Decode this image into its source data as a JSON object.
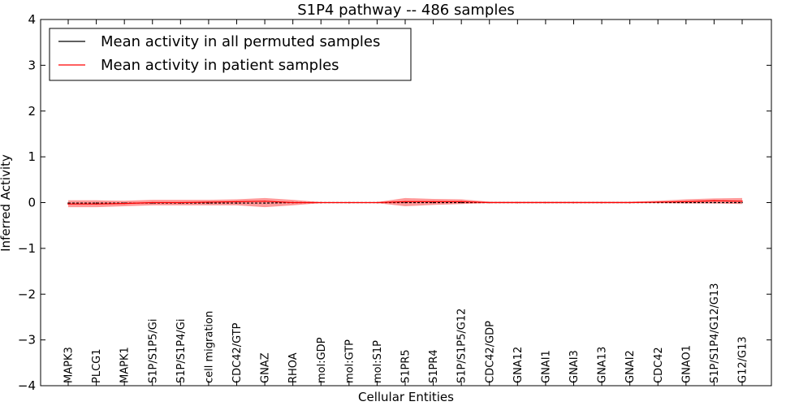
{
  "chart_data": {
    "type": "line",
    "title": "S1P4 pathway -- 486 samples",
    "xlabel": "Cellular Entities",
    "ylabel": "Inferred Activity",
    "ylim": [
      -4,
      4
    ],
    "yticks": [
      "−4",
      "−3",
      "−2",
      "−1",
      "0",
      "1",
      "2",
      "3",
      "4"
    ],
    "ytick_values": [
      -4,
      -3,
      -2,
      -1,
      0,
      1,
      2,
      3,
      4
    ],
    "categories": [
      "MAPK3",
      "PLCG1",
      "MAPK1",
      "S1P/S1P5/Gi",
      "S1P/S1P4/Gi",
      "cell migration",
      "CDC42/GTP",
      "GNAZ",
      "RHOA",
      "mol:GDP",
      "mol:GTP",
      "mol:S1P",
      "S1PR5",
      "S1PR4",
      "S1P/S1P5/G12",
      "CDC42/GDP",
      "GNA12",
      "GNAI1",
      "GNAI3",
      "GNA13",
      "GNAI2",
      "CDC42",
      "GNAO1",
      "S1P/S1P4/G12/G13",
      "G12/G13"
    ],
    "legend": {
      "position": "top-left",
      "entries": [
        {
          "label": "Mean activity in all permuted samples",
          "color": "#000000"
        },
        {
          "label": "Mean activity in patient samples",
          "color": "#ff0000"
        }
      ]
    },
    "series": [
      {
        "name": "Mean activity in all permuted samples",
        "color": "#000000",
        "style": "dashed",
        "values": [
          -0.01,
          -0.01,
          -0.01,
          -0.01,
          -0.01,
          -0.01,
          -0.01,
          -0.01,
          0,
          0,
          0,
          0,
          0,
          0,
          0,
          0,
          0,
          0,
          0,
          0,
          0,
          0,
          0,
          0,
          0
        ]
      },
      {
        "name": "Mean activity in patient samples",
        "color": "#ff0000",
        "values": [
          -0.03,
          -0.03,
          -0.02,
          0,
          0,
          0.01,
          0.02,
          0.03,
          0,
          0,
          0,
          0,
          0.02,
          0.02,
          0.02,
          0,
          0,
          0,
          0,
          0,
          0,
          0.01,
          0.02,
          0.04,
          0.03
        ],
        "band_lower": [
          -0.1,
          -0.1,
          -0.08,
          -0.06,
          -0.06,
          -0.06,
          -0.06,
          -0.1,
          -0.06,
          -0.01,
          -0.01,
          -0.01,
          -0.08,
          -0.05,
          -0.03,
          -0.01,
          -0.01,
          -0.01,
          -0.01,
          -0.01,
          -0.01,
          -0.01,
          -0.02,
          -0.02,
          -0.03
        ],
        "band_upper": [
          0.05,
          0.05,
          0.04,
          0.06,
          0.06,
          0.06,
          0.07,
          0.1,
          0.06,
          0.01,
          0.01,
          0.01,
          0.1,
          0.08,
          0.07,
          0.02,
          0.02,
          0.02,
          0.02,
          0.02,
          0.02,
          0.04,
          0.07,
          0.09,
          0.1
        ],
        "band_color": "#ff0000",
        "band_opacity": 0.4
      }
    ]
  }
}
